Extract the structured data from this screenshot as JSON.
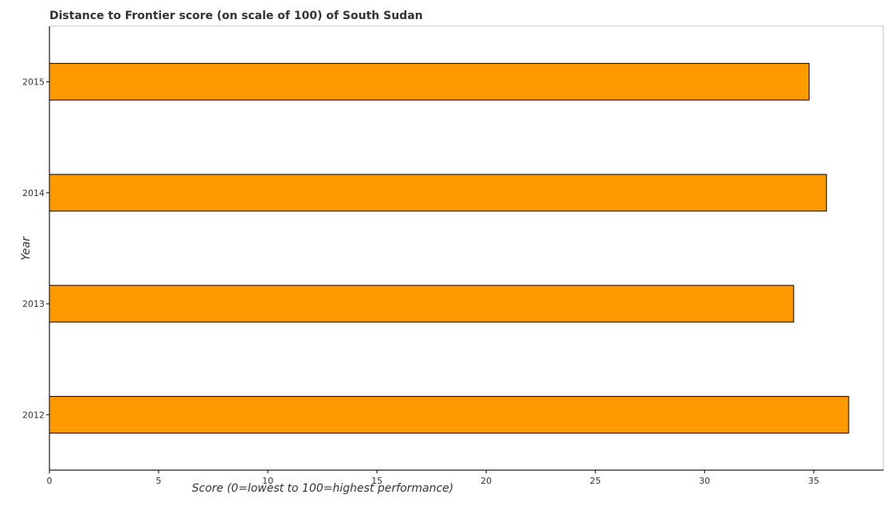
{
  "chart_data": {
    "type": "bar",
    "orientation": "horizontal",
    "title": "Distance to Frontier score (on scale of 100) of South Sudan",
    "xlabel": "Score (0=lowest to 100=highest performance)",
    "ylabel": "Year",
    "categories": [
      "2012",
      "2013",
      "2014",
      "2015"
    ],
    "values": [
      36.6,
      34.08,
      35.58,
      34.79
    ],
    "xlim": [
      0,
      38.2
    ],
    "xticks": [
      0,
      5,
      10,
      15,
      20,
      25,
      30,
      35
    ],
    "grid": false,
    "legend": "none",
    "colors": {
      "bar": "#FF9900",
      "bar_edge": "#000000"
    }
  }
}
